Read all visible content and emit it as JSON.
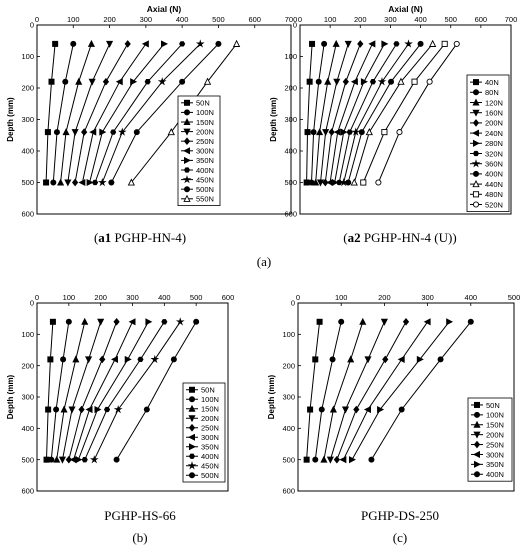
{
  "sub_label": "(a)",
  "charts": [
    {
      "caption_bold": "a1",
      "caption_text": " PGHP-HN-4",
      "caption_plain": ""
    },
    {
      "caption_bold": "a2",
      "caption_text": " PGHP-HN-4 (U)",
      "caption_plain": ""
    },
    {
      "caption_bold": "",
      "caption_text": "",
      "caption_plain": "PGHP-HS-66",
      "sub": "(b)"
    },
    {
      "caption_bold": "",
      "caption_text": "",
      "caption_plain": "PGHP-DS-250",
      "sub": "(c)"
    }
  ],
  "chart_data": [
    {
      "type": "line",
      "xlabel": "Axial (N)",
      "ylabel": "Depth (mm)",
      "xlim": [
        0,
        700
      ],
      "ylim": [
        600,
        0
      ],
      "xticks": [
        0,
        100,
        200,
        300,
        400,
        500,
        600,
        700
      ],
      "yticks": [
        0,
        100,
        200,
        300,
        400,
        500,
        600
      ],
      "x_axis_position": "top",
      "depth": [
        60,
        180,
        340,
        500
      ],
      "legend_position": "right",
      "series": [
        {
          "name": "50N",
          "marker": "square",
          "values": [
            50,
            40,
            30,
            25
          ]
        },
        {
          "name": "100N",
          "marker": "circle",
          "values": [
            100,
            78,
            55,
            45
          ]
        },
        {
          "name": "150N",
          "marker": "triangle-up",
          "values": [
            150,
            115,
            80,
            65
          ]
        },
        {
          "name": "200N",
          "marker": "triangle-down",
          "values": [
            200,
            152,
            105,
            85
          ]
        },
        {
          "name": "250N",
          "marker": "diamond",
          "values": [
            250,
            190,
            130,
            105
          ]
        },
        {
          "name": "300N",
          "marker": "triangle-left",
          "values": [
            300,
            228,
            155,
            125
          ]
        },
        {
          "name": "350N",
          "marker": "triangle-right",
          "values": [
            350,
            265,
            180,
            145
          ]
        },
        {
          "name": "400N",
          "marker": "hexagon",
          "values": [
            400,
            305,
            210,
            160
          ]
        },
        {
          "name": "450N",
          "marker": "star",
          "values": [
            450,
            345,
            235,
            180
          ]
        },
        {
          "name": "500N",
          "marker": "circle-filled",
          "values": [
            500,
            400,
            275,
            205
          ]
        },
        {
          "name": "550N",
          "marker": "triangle-open",
          "values": [
            550,
            470,
            370,
            260
          ]
        }
      ]
    },
    {
      "type": "line",
      "xlabel": "Axial (N)",
      "ylabel": "Depth (mm)",
      "xlim": [
        0,
        700
      ],
      "ylim": [
        600,
        0
      ],
      "xticks": [
        0,
        100,
        200,
        300,
        400,
        500,
        600,
        700
      ],
      "yticks": [
        0,
        100,
        200,
        300,
        400,
        500,
        600
      ],
      "x_axis_position": "top",
      "depth": [
        60,
        180,
        340,
        500
      ],
      "legend_position": "right",
      "series": [
        {
          "name": "40N",
          "marker": "square",
          "values": [
            40,
            32,
            25,
            22
          ]
        },
        {
          "name": "80N",
          "marker": "circle",
          "values": [
            80,
            62,
            45,
            38
          ]
        },
        {
          "name": "120N",
          "marker": "triangle-up",
          "values": [
            120,
            92,
            65,
            52
          ]
        },
        {
          "name": "160N",
          "marker": "triangle-down",
          "values": [
            160,
            122,
            85,
            68
          ]
        },
        {
          "name": "200N",
          "marker": "diamond",
          "values": [
            200,
            152,
            105,
            84
          ]
        },
        {
          "name": "240N",
          "marker": "triangle-left",
          "values": [
            240,
            182,
            125,
            100
          ]
        },
        {
          "name": "280N",
          "marker": "triangle-right",
          "values": [
            280,
            212,
            145,
            115
          ]
        },
        {
          "name": "320N",
          "marker": "hexagon",
          "values": [
            320,
            242,
            165,
            130
          ]
        },
        {
          "name": "360N",
          "marker": "star",
          "values": [
            360,
            272,
            185,
            145
          ]
        },
        {
          "name": "400N",
          "marker": "circle-filled",
          "values": [
            400,
            302,
            205,
            160
          ]
        },
        {
          "name": "440N",
          "marker": "triangle-open",
          "values": [
            440,
            335,
            230,
            180
          ]
        },
        {
          "name": "480N",
          "marker": "square-open",
          "values": [
            480,
            380,
            280,
            210
          ]
        },
        {
          "name": "520N",
          "marker": "circle-open",
          "values": [
            520,
            430,
            330,
            260
          ]
        }
      ]
    },
    {
      "type": "line",
      "xlabel": "",
      "ylabel": "Depth (mm)",
      "xlim": [
        0,
        600
      ],
      "ylim": [
        600,
        0
      ],
      "xticks": [
        0,
        100,
        200,
        300,
        400,
        500,
        600
      ],
      "yticks": [
        0,
        100,
        200,
        300,
        400,
        500,
        600
      ],
      "x_axis_position": "top",
      "depth": [
        60,
        180,
        340,
        500
      ],
      "legend_position": "right",
      "series": [
        {
          "name": "50N",
          "marker": "square",
          "values": [
            50,
            42,
            35,
            30
          ]
        },
        {
          "name": "100N",
          "marker": "circle",
          "values": [
            100,
            82,
            60,
            45
          ]
        },
        {
          "name": "150N",
          "marker": "triangle-up",
          "values": [
            150,
            122,
            85,
            62
          ]
        },
        {
          "name": "200N",
          "marker": "triangle-down",
          "values": [
            200,
            162,
            110,
            80
          ]
        },
        {
          "name": "250N",
          "marker": "diamond",
          "values": [
            250,
            205,
            140,
            100
          ]
        },
        {
          "name": "300N",
          "marker": "triangle-left",
          "values": [
            300,
            245,
            165,
            115
          ]
        },
        {
          "name": "350N",
          "marker": "triangle-right",
          "values": [
            350,
            285,
            190,
            130
          ]
        },
        {
          "name": "400N",
          "marker": "hexagon",
          "values": [
            400,
            325,
            220,
            150
          ]
        },
        {
          "name": "450N",
          "marker": "star",
          "values": [
            450,
            370,
            255,
            180
          ]
        },
        {
          "name": "500N",
          "marker": "circle-filled",
          "values": [
            500,
            430,
            345,
            250
          ]
        }
      ]
    },
    {
      "type": "line",
      "xlabel": "",
      "ylabel": "Depth (mm)",
      "xlim": [
        0,
        500
      ],
      "ylim": [
        600,
        0
      ],
      "xticks": [
        0,
        100,
        200,
        300,
        400,
        500
      ],
      "yticks": [
        0,
        100,
        200,
        300,
        400,
        500,
        600
      ],
      "x_axis_position": "top",
      "depth": [
        60,
        180,
        340,
        500
      ],
      "legend_position": "right",
      "series": [
        {
          "name": "50N",
          "marker": "square",
          "values": [
            50,
            40,
            28,
            20
          ]
        },
        {
          "name": "100N",
          "marker": "circle",
          "values": [
            100,
            80,
            55,
            40
          ]
        },
        {
          "name": "150N",
          "marker": "triangle-up",
          "values": [
            150,
            122,
            82,
            60
          ]
        },
        {
          "name": "200N",
          "marker": "triangle-down",
          "values": [
            200,
            162,
            110,
            75
          ]
        },
        {
          "name": "250N",
          "marker": "diamond",
          "values": [
            250,
            202,
            135,
            90
          ]
        },
        {
          "name": "300N",
          "marker": "triangle-left",
          "values": [
            300,
            240,
            162,
            105
          ]
        },
        {
          "name": "350N",
          "marker": "triangle-right",
          "values": [
            350,
            282,
            190,
            125
          ]
        },
        {
          "name": "400N",
          "marker": "circle-filled",
          "values": [
            400,
            330,
            240,
            170
          ]
        }
      ]
    }
  ]
}
